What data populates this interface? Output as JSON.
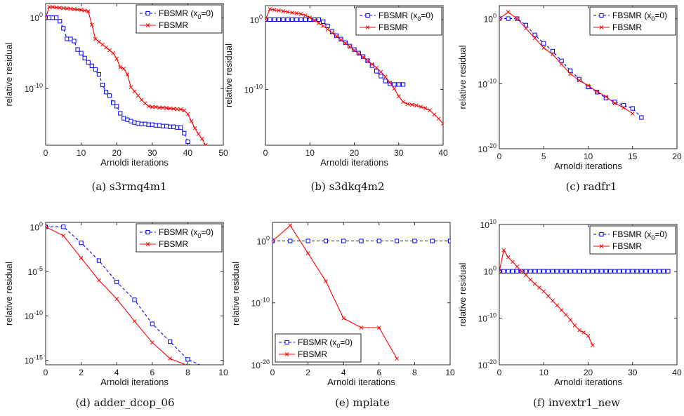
{
  "chart_data": [
    {
      "type": "line",
      "caption": "(a) s3rmq4m1",
      "xlabel": "Arnoldi iterations",
      "ylabel": "relative residual",
      "y_scale": "log",
      "xlim": [
        0,
        50
      ],
      "xticks": [
        "0",
        "10",
        "20",
        "30",
        "40",
        "50"
      ],
      "ylim_exp": [
        -18,
        2
      ],
      "yticks": [
        {
          "exp": 0,
          "label": "10^0"
        },
        {
          "exp": -10,
          "label": "10^-10"
        }
      ],
      "legend_position": "top-right",
      "series": [
        {
          "name": "FBSMR (x_0=0)",
          "color": "#0000ff",
          "marker": "square",
          "dash": true,
          "x": [
            0,
            1,
            2,
            3,
            4,
            5,
            6,
            7,
            8,
            9,
            10,
            11,
            12,
            13,
            14,
            15,
            16,
            17,
            18,
            19,
            20,
            21,
            22,
            23,
            24,
            25,
            26,
            27,
            28,
            29,
            30,
            31,
            32,
            33,
            34,
            35,
            36,
            37,
            38,
            39,
            40
          ],
          "y_exp": [
            0,
            0,
            0,
            0,
            -0.5,
            -1.5,
            -3,
            -3,
            -3.3,
            -4.5,
            -5,
            -5.7,
            -6.3,
            -6.8,
            -7.3,
            -8,
            -9.5,
            -10.5,
            -11,
            -12,
            -12.5,
            -13.5,
            -14.2,
            -14.4,
            -14.6,
            -14.8,
            -14.9,
            -15,
            -15,
            -15.1,
            -15.1,
            -15.2,
            -15.2,
            -15.3,
            -15.3,
            -15.4,
            -15.4,
            -15.5,
            -15.5,
            -16.3,
            -17.5
          ]
        },
        {
          "name": "FBSMR",
          "color": "#ff0000",
          "marker": "x",
          "dash": false,
          "x": [
            0,
            1,
            2,
            3,
            4,
            5,
            6,
            7,
            8,
            9,
            10,
            11,
            12,
            13,
            14,
            15,
            16,
            17,
            18,
            19,
            20,
            21,
            22,
            23,
            24,
            25,
            26,
            27,
            28,
            29,
            30,
            31,
            32,
            33,
            34,
            35,
            36,
            37,
            38,
            39,
            40,
            41,
            42,
            43,
            44,
            45
          ],
          "y_exp": [
            0,
            1.5,
            1.5,
            1.45,
            1.4,
            1.35,
            1.3,
            1.25,
            1.2,
            1.15,
            1.1,
            1,
            0.9,
            -1,
            -3,
            -3.4,
            -3.8,
            -4.2,
            -4.6,
            -5,
            -5.8,
            -7,
            -7.2,
            -8,
            -9.8,
            -10.4,
            -11,
            -11.6,
            -12.1,
            -12.5,
            -12.6,
            -12.6,
            -12.7,
            -12.7,
            -12.75,
            -12.8,
            -12.85,
            -12.9,
            -12.95,
            -13.1,
            -13.6,
            -14.6,
            -15.6,
            -16.4,
            -17.1,
            -18
          ]
        }
      ]
    },
    {
      "type": "line",
      "caption": "(b) s3dkq4m2",
      "xlabel": "Arnoldi iterations",
      "ylabel": "relative residual",
      "y_scale": "log",
      "xlim": [
        0,
        40
      ],
      "xticks": [
        "0",
        "10",
        "20",
        "30",
        "40"
      ],
      "ylim_exp": [
        -18,
        2
      ],
      "yticks": [
        {
          "exp": 0,
          "label": "10^0"
        },
        {
          "exp": -10,
          "label": "10^-10"
        }
      ],
      "legend_position": "top-right",
      "series": [
        {
          "name": "FBSMR (x_0=0)",
          "color": "#0000ff",
          "marker": "square",
          "dash": true,
          "x": [
            0,
            1,
            2,
            3,
            4,
            5,
            6,
            7,
            8,
            9,
            10,
            11,
            12,
            13,
            14,
            15,
            16,
            17,
            18,
            19,
            20,
            21,
            22,
            23,
            24,
            25,
            26,
            27,
            28,
            29,
            30,
            31
          ],
          "y_exp": [
            0,
            0,
            0,
            0,
            0,
            0,
            0,
            0,
            0,
            0,
            0,
            0,
            0,
            -0.3,
            -0.9,
            -1.7,
            -2.3,
            -2.8,
            -3.3,
            -3.8,
            -4.3,
            -4.8,
            -5.3,
            -5.9,
            -6.6,
            -7.4,
            -8.1,
            -8.8,
            -9.2,
            -9.3,
            -9.3,
            -9.3
          ]
        },
        {
          "name": "FBSMR",
          "color": "#ff0000",
          "marker": "x",
          "dash": false,
          "x": [
            0,
            1,
            2,
            3,
            4,
            5,
            6,
            7,
            8,
            9,
            10,
            11,
            12,
            13,
            14,
            15,
            16,
            17,
            18,
            19,
            20,
            21,
            22,
            23,
            24,
            25,
            26,
            27,
            28,
            29,
            30,
            31,
            32,
            33,
            34,
            35,
            36,
            37,
            38,
            39,
            40,
            41,
            42
          ],
          "y_exp": [
            0,
            1.5,
            1.4,
            1.3,
            1.2,
            1.1,
            1,
            0.9,
            0.8,
            0.6,
            0.3,
            -0.1,
            -0.5,
            -0.9,
            -1.4,
            -1.9,
            -2.4,
            -2.9,
            -3.4,
            -3.9,
            -4.4,
            -4.9,
            -5.4,
            -5.9,
            -6.4,
            -6.9,
            -7.5,
            -8.2,
            -9,
            -9.9,
            -11,
            -11.8,
            -12.1,
            -12.2,
            -12.3,
            -12.5,
            -12.7,
            -13,
            -13.6,
            -14.2,
            -14.9,
            -16,
            -17.5
          ]
        }
      ]
    },
    {
      "type": "line",
      "caption": "(c) radfr1",
      "xlabel": "Arnoldi iterations",
      "ylabel": "relative residual",
      "y_scale": "log",
      "xlim": [
        0,
        20
      ],
      "xticks": [
        "0",
        "5",
        "10",
        "15",
        "20"
      ],
      "ylim_exp": [
        -20,
        2
      ],
      "yticks": [
        {
          "exp": 0,
          "label": "10^0"
        },
        {
          "exp": -10,
          "label": "10^-10"
        },
        {
          "exp": -20,
          "label": "10^-20"
        }
      ],
      "legend_position": "top-right",
      "series": [
        {
          "name": "FBSMR (x_0=0)",
          "color": "#0000ff",
          "marker": "square",
          "dash": true,
          "x": [
            0,
            1,
            2,
            3,
            4,
            5,
            6,
            7,
            8,
            9,
            10,
            11,
            12,
            13,
            14,
            15,
            16
          ],
          "y_exp": [
            0,
            0,
            0,
            -1,
            -2.5,
            -3.8,
            -5,
            -6.5,
            -8,
            -9.3,
            -10.5,
            -11.3,
            -12.2,
            -12.8,
            -13.3,
            -13.8,
            -15.2
          ]
        },
        {
          "name": "FBSMR",
          "color": "#ff0000",
          "marker": "x",
          "dash": false,
          "x": [
            0,
            1,
            2,
            3,
            4,
            5,
            6,
            7,
            8,
            9,
            10,
            11,
            12,
            13,
            14,
            15
          ],
          "y_exp": [
            0,
            1,
            0,
            -1.5,
            -3,
            -4.5,
            -5.5,
            -7,
            -8.5,
            -9.5,
            -10.3,
            -11.2,
            -12,
            -13,
            -13.7,
            -14.6
          ]
        }
      ]
    },
    {
      "type": "line",
      "caption": "(d) adder_dcop_06",
      "xlabel": "Arnoldi iterations",
      "ylabel": "relative residual",
      "y_scale": "log",
      "xlim": [
        0,
        10
      ],
      "xticks": [
        "0",
        "2",
        "4",
        "6",
        "8",
        "10"
      ],
      "ylim_exp": [
        -15.5,
        0.5
      ],
      "yticks": [
        {
          "exp": 0,
          "label": "10^0"
        },
        {
          "exp": -5,
          "label": "10^-5"
        },
        {
          "exp": -10,
          "label": "10^-10"
        },
        {
          "exp": -15,
          "label": "10^-15"
        }
      ],
      "legend_position": "top-right",
      "series": [
        {
          "name": "FBSMR (x_0=0)",
          "color": "#0000ff",
          "marker": "square",
          "dash": true,
          "x": [
            0,
            1,
            2,
            3,
            4,
            5,
            6,
            7,
            8,
            9,
            10
          ],
          "y_exp": [
            0,
            0,
            -1.8,
            -3.8,
            -6.2,
            -8.2,
            -10.9,
            -12.9,
            -14.9,
            -15.8,
            -15.8
          ]
        },
        {
          "name": "FBSMR",
          "color": "#ff0000",
          "marker": "x",
          "dash": false,
          "x": [
            0,
            1,
            2,
            3,
            4,
            5,
            6,
            7,
            8,
            9,
            10
          ],
          "y_exp": [
            0,
            -1,
            -3.5,
            -6,
            -8.1,
            -10.6,
            -13,
            -14.8,
            -15.6,
            -15.8,
            -16.2
          ]
        }
      ]
    },
    {
      "type": "line",
      "caption": "(e) mplate",
      "xlabel": "Arnoldi iterations",
      "ylabel": "relative residual",
      "y_scale": "log",
      "xlim": [
        0,
        10
      ],
      "xticks": [
        "0",
        "2",
        "4",
        "6",
        "8",
        "10"
      ],
      "ylim_exp": [
        -20,
        3
      ],
      "yticks": [
        {
          "exp": 0,
          "label": "10^0"
        },
        {
          "exp": -10,
          "label": "10^-10"
        },
        {
          "exp": -20,
          "label": "10^-20"
        }
      ],
      "legend_position": "bottom-left",
      "series": [
        {
          "name": "FBSMR (x_0=0)",
          "color": "#0000ff",
          "marker": "square",
          "dash": true,
          "x": [
            0,
            1,
            2,
            3,
            4,
            5,
            6,
            7,
            8,
            9,
            10
          ],
          "y_exp": [
            0,
            0,
            0,
            0,
            0,
            0,
            0,
            0,
            0,
            0,
            0
          ]
        },
        {
          "name": "FBSMR",
          "color": "#ff0000",
          "marker": "x",
          "dash": false,
          "x": [
            0,
            1,
            2,
            3,
            4,
            5,
            6,
            7
          ],
          "y_exp": [
            0,
            2.5,
            -2,
            -6.5,
            -12.5,
            -14,
            -14,
            -19
          ]
        }
      ]
    },
    {
      "type": "line",
      "caption": "(f) invextr1_new",
      "xlabel": "Arnoldi iterations",
      "ylabel": "relative residual",
      "y_scale": "log",
      "xlim": [
        0,
        40
      ],
      "xticks": [
        "0",
        "10",
        "20",
        "30",
        "40"
      ],
      "ylim_exp": [
        -20,
        10
      ],
      "yticks": [
        {
          "exp": 10,
          "label": "10^10"
        },
        {
          "exp": 0,
          "label": "10^0"
        },
        {
          "exp": -10,
          "label": "10^-10"
        },
        {
          "exp": -20,
          "label": "10^-20"
        }
      ],
      "legend_position": "top-right",
      "series": [
        {
          "name": "FBSMR (x_0=0)",
          "color": "#0000ff",
          "marker": "square",
          "dash": true,
          "x": [
            0,
            1,
            2,
            3,
            4,
            5,
            6,
            7,
            8,
            9,
            10,
            11,
            12,
            13,
            14,
            15,
            16,
            17,
            18,
            19,
            20,
            21,
            22,
            23,
            24,
            25,
            26,
            27,
            28,
            29,
            30,
            31,
            32,
            33,
            34,
            35,
            36,
            37,
            38
          ],
          "y_exp": [
            0,
            0,
            0,
            0,
            0,
            0,
            0,
            0,
            0,
            0,
            0,
            0,
            0,
            0,
            0,
            0,
            0,
            0,
            0,
            0,
            0,
            0,
            0,
            0,
            0,
            0,
            0,
            0,
            0,
            0,
            0,
            0,
            0,
            0,
            0,
            0,
            0,
            0,
            0
          ]
        },
        {
          "name": "FBSMR",
          "color": "#ff0000",
          "marker": "x",
          "dash": false,
          "x": [
            0,
            1,
            2,
            3,
            4,
            5,
            6,
            7,
            8,
            9,
            10,
            11,
            12,
            13,
            14,
            15,
            16,
            17,
            18,
            19,
            20,
            21
          ],
          "y_exp": [
            0,
            4.5,
            3,
            2,
            1,
            0,
            -0.8,
            -1.8,
            -2.7,
            -3.5,
            -4.3,
            -5.3,
            -6.3,
            -7.3,
            -8.3,
            -9.3,
            -10.4,
            -11.6,
            -12.6,
            -13.1,
            -13.8,
            -15.8
          ]
        }
      ]
    }
  ]
}
